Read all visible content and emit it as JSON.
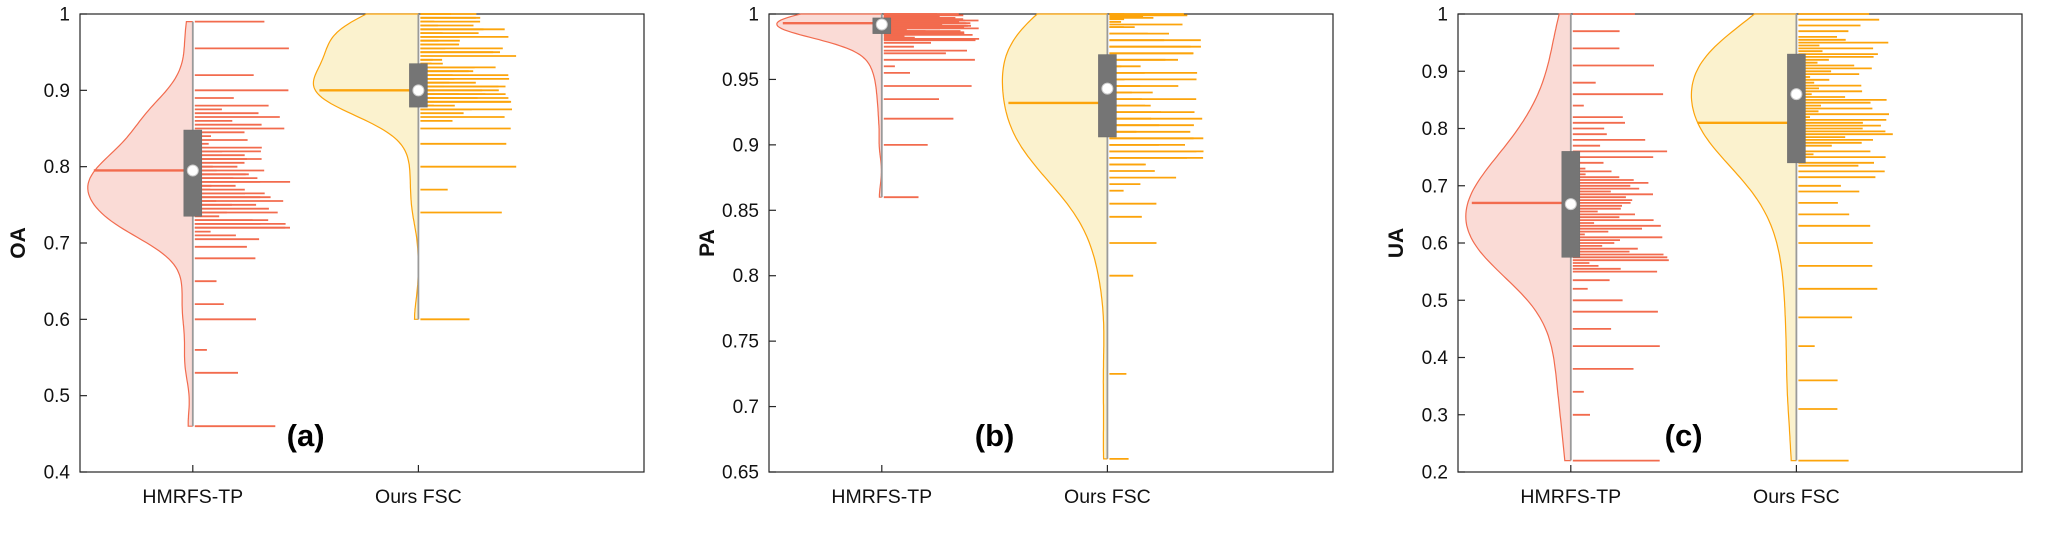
{
  "figure": {
    "background": "#ffffff",
    "axis_color": "#262626",
    "box_fill": "#757575",
    "whisker_color": "#9a9a9a",
    "dot_fill": "#ffffff"
  },
  "chart_data": [
    {
      "type": "raincloud",
      "panel_label": "(a)",
      "title": "",
      "xlabel": "",
      "ylabel": "OA",
      "ylim": [
        0.4,
        1.0
      ],
      "grid": false,
      "legend": "none",
      "yticks": [
        {
          "v": 0.4,
          "label": "0.4"
        },
        {
          "v": 0.5,
          "label": "0.5"
        },
        {
          "v": 0.6,
          "label": "0.6"
        },
        {
          "v": 0.7,
          "label": "0.7"
        },
        {
          "v": 0.8,
          "label": "0.8"
        },
        {
          "v": 0.9,
          "label": "0.9"
        },
        {
          "v": 1.0,
          "label": "1"
        }
      ],
      "categories": [
        "HMRFS-TP",
        "Ours FSC"
      ],
      "groups": [
        {
          "name": "HMRFS-TP",
          "line_color": "#f26b4e",
          "fill_color": "#fadbd6",
          "median": 0.795,
          "mean_dot": 0.795,
          "box": {
            "q1": 0.735,
            "q3": 0.848
          },
          "whisker": {
            "low": 0.46,
            "high": 0.99
          },
          "bandwidth": 0.025,
          "points": [
            0.46,
            0.53,
            0.56,
            0.6,
            0.62,
            0.65,
            0.68,
            0.695,
            0.705,
            0.71,
            0.715,
            0.72,
            0.72,
            0.725,
            0.725,
            0.73,
            0.73,
            0.735,
            0.74,
            0.74,
            0.745,
            0.75,
            0.75,
            0.755,
            0.755,
            0.76,
            0.76,
            0.765,
            0.765,
            0.77,
            0.77,
            0.775,
            0.775,
            0.78,
            0.78,
            0.785,
            0.785,
            0.79,
            0.79,
            0.795,
            0.795,
            0.8,
            0.8,
            0.805,
            0.81,
            0.81,
            0.815,
            0.82,
            0.82,
            0.825,
            0.83,
            0.835,
            0.84,
            0.845,
            0.85,
            0.855,
            0.86,
            0.865,
            0.87,
            0.875,
            0.88,
            0.89,
            0.9,
            0.92,
            0.955,
            0.99
          ]
        },
        {
          "name": "Ours FSC",
          "line_color": "#fca40b",
          "fill_color": "#fbf2ce",
          "median": 0.9,
          "mean_dot": 0.9,
          "box": {
            "q1": 0.878,
            "q3": 0.935
          },
          "whisker": {
            "low": 0.6,
            "high": 1.0
          },
          "bandwidth": 0.025,
          "points": [
            0.6,
            0.74,
            0.77,
            0.8,
            0.83,
            0.85,
            0.86,
            0.865,
            0.87,
            0.875,
            0.875,
            0.88,
            0.88,
            0.885,
            0.885,
            0.89,
            0.89,
            0.89,
            0.895,
            0.895,
            0.895,
            0.9,
            0.9,
            0.9,
            0.905,
            0.905,
            0.905,
            0.91,
            0.91,
            0.915,
            0.915,
            0.92,
            0.92,
            0.925,
            0.925,
            0.93,
            0.93,
            0.935,
            0.935,
            0.94,
            0.94,
            0.945,
            0.95,
            0.95,
            0.955,
            0.955,
            0.96,
            0.96,
            0.965,
            0.965,
            0.97,
            0.97,
            0.975,
            0.975,
            0.98,
            0.98,
            0.985,
            0.985,
            0.99,
            0.99,
            0.995,
            0.995,
            1.0,
            1.0
          ]
        }
      ]
    },
    {
      "type": "raincloud",
      "panel_label": "(b)",
      "title": "",
      "xlabel": "",
      "ylabel": "PA",
      "ylim": [
        0.65,
        1.0
      ],
      "grid": false,
      "legend": "none",
      "yticks": [
        {
          "v": 0.65,
          "label": "0.65"
        },
        {
          "v": 0.7,
          "label": "0.7"
        },
        {
          "v": 0.75,
          "label": "0.75"
        },
        {
          "v": 0.8,
          "label": "0.8"
        },
        {
          "v": 0.85,
          "label": "0.85"
        },
        {
          "v": 0.9,
          "label": "0.9"
        },
        {
          "v": 0.95,
          "label": "0.95"
        },
        {
          "v": 1.0,
          "label": "1"
        }
      ],
      "categories": [
        "HMRFS-TP",
        "Ours FSC"
      ],
      "groups": [
        {
          "name": "HMRFS-TP",
          "line_color": "#f26b4e",
          "fill_color": "#fadbd6",
          "median": 0.993,
          "mean_dot": 0.992,
          "box": {
            "q1": 0.985,
            "q3": 0.997
          },
          "whisker": {
            "low": 0.86,
            "high": 1.0
          },
          "bandwidth": 0.009,
          "points": [
            0.86,
            0.9,
            0.92,
            0.935,
            0.945,
            0.955,
            0.96,
            0.965,
            0.97,
            0.972,
            0.975,
            0.978,
            0.98,
            0.981,
            0.982,
            0.983,
            0.984,
            0.985,
            0.985,
            0.986,
            0.986,
            0.987,
            0.987,
            0.988,
            0.988,
            0.989,
            0.989,
            0.99,
            0.99,
            0.99,
            0.991,
            0.991,
            0.991,
            0.992,
            0.992,
            0.992,
            0.993,
            0.993,
            0.993,
            0.994,
            0.994,
            0.994,
            0.995,
            0.995,
            0.995,
            0.995,
            0.996,
            0.996,
            0.996,
            0.997,
            0.997,
            0.997,
            0.997,
            0.998,
            0.998,
            0.998,
            0.999,
            0.999,
            0.999,
            1.0,
            1.0,
            1.0
          ]
        },
        {
          "name": "Ours FSC",
          "line_color": "#fca40b",
          "fill_color": "#fbf2ce",
          "median": 0.932,
          "mean_dot": 0.943,
          "box": {
            "q1": 0.906,
            "q3": 0.969
          },
          "whisker": {
            "low": 0.66,
            "high": 1.0
          },
          "bandwidth": 0.03,
          "points": [
            0.66,
            0.725,
            0.8,
            0.825,
            0.845,
            0.855,
            0.865,
            0.87,
            0.875,
            0.88,
            0.885,
            0.885,
            0.89,
            0.89,
            0.895,
            0.895,
            0.9,
            0.9,
            0.905,
            0.905,
            0.91,
            0.91,
            0.915,
            0.915,
            0.92,
            0.92,
            0.925,
            0.925,
            0.93,
            0.93,
            0.935,
            0.935,
            0.94,
            0.94,
            0.945,
            0.945,
            0.95,
            0.95,
            0.955,
            0.955,
            0.96,
            0.96,
            0.965,
            0.965,
            0.97,
            0.97,
            0.975,
            0.975,
            0.98,
            0.98,
            0.985,
            0.985,
            0.99,
            0.99,
            0.992,
            0.994,
            0.996,
            0.997,
            0.998,
            0.999,
            1.0,
            1.0
          ]
        }
      ]
    },
    {
      "type": "raincloud",
      "panel_label": "(c)",
      "title": "",
      "xlabel": "",
      "ylabel": "UA",
      "ylim": [
        0.2,
        1.0
      ],
      "grid": false,
      "legend": "none",
      "yticks": [
        {
          "v": 0.2,
          "label": "0.2"
        },
        {
          "v": 0.3,
          "label": "0.3"
        },
        {
          "v": 0.4,
          "label": "0.4"
        },
        {
          "v": 0.5,
          "label": "0.5"
        },
        {
          "v": 0.6,
          "label": "0.6"
        },
        {
          "v": 0.7,
          "label": "0.7"
        },
        {
          "v": 0.8,
          "label": "0.8"
        },
        {
          "v": 0.9,
          "label": "0.9"
        },
        {
          "v": 1.0,
          "label": "1"
        }
      ],
      "categories": [
        "HMRFS-TP",
        "Ours FSC"
      ],
      "groups": [
        {
          "name": "HMRFS-TP",
          "line_color": "#f26b4e",
          "fill_color": "#fadbd6",
          "median": 0.67,
          "mean_dot": 0.668,
          "box": {
            "q1": 0.575,
            "q3": 0.76
          },
          "whisker": {
            "low": 0.22,
            "high": 1.0
          },
          "bandwidth": 0.06,
          "points": [
            0.22,
            0.3,
            0.34,
            0.38,
            0.42,
            0.45,
            0.48,
            0.5,
            0.52,
            0.535,
            0.55,
            0.555,
            0.56,
            0.565,
            0.57,
            0.575,
            0.58,
            0.585,
            0.59,
            0.595,
            0.6,
            0.605,
            0.61,
            0.615,
            0.62,
            0.625,
            0.63,
            0.635,
            0.64,
            0.645,
            0.65,
            0.655,
            0.66,
            0.665,
            0.67,
            0.675,
            0.68,
            0.685,
            0.69,
            0.695,
            0.7,
            0.705,
            0.71,
            0.715,
            0.72,
            0.725,
            0.73,
            0.74,
            0.75,
            0.76,
            0.77,
            0.78,
            0.79,
            0.8,
            0.81,
            0.82,
            0.84,
            0.86,
            0.88,
            0.91,
            0.94,
            0.97,
            1.0
          ]
        },
        {
          "name": "Ours FSC",
          "line_color": "#fca40b",
          "fill_color": "#fbf2ce",
          "median": 0.81,
          "mean_dot": 0.86,
          "box": {
            "q1": 0.74,
            "q3": 0.93
          },
          "whisker": {
            "low": 0.22,
            "high": 1.0
          },
          "bandwidth": 0.055,
          "points": [
            0.22,
            0.31,
            0.36,
            0.42,
            0.47,
            0.52,
            0.56,
            0.6,
            0.63,
            0.65,
            0.67,
            0.69,
            0.7,
            0.715,
            0.725,
            0.735,
            0.74,
            0.75,
            0.755,
            0.76,
            0.77,
            0.775,
            0.78,
            0.785,
            0.79,
            0.795,
            0.8,
            0.805,
            0.81,
            0.815,
            0.82,
            0.825,
            0.83,
            0.835,
            0.84,
            0.845,
            0.85,
            0.855,
            0.86,
            0.865,
            0.87,
            0.875,
            0.88,
            0.885,
            0.89,
            0.895,
            0.9,
            0.905,
            0.91,
            0.915,
            0.92,
            0.925,
            0.93,
            0.935,
            0.94,
            0.945,
            0.95,
            0.955,
            0.96,
            0.97,
            0.98,
            0.99,
            1.0
          ]
        }
      ]
    }
  ]
}
